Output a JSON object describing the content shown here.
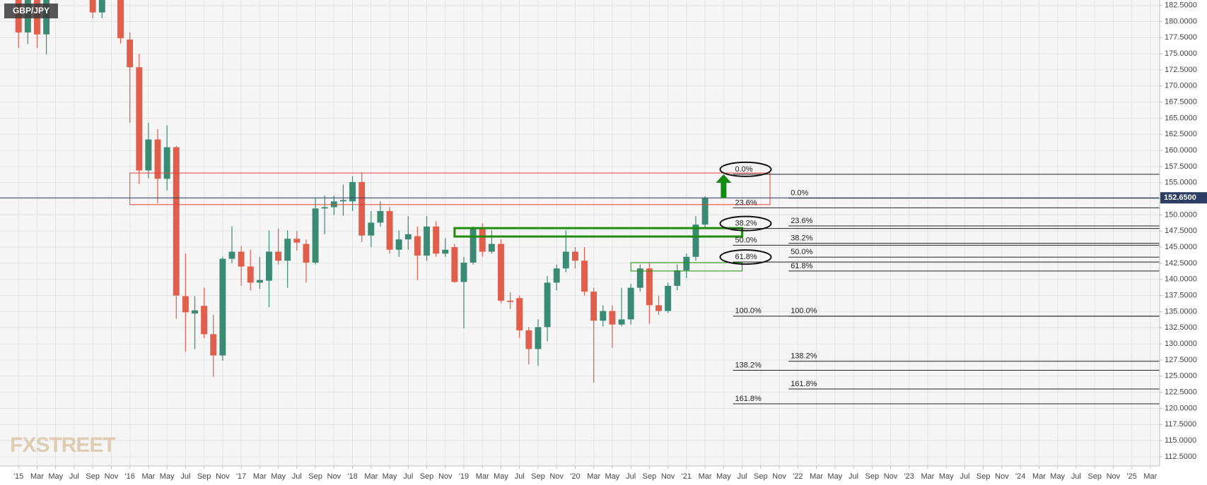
{
  "chart_data": {
    "type": "candlestick",
    "title": "GBP/JPY",
    "watermark": "FXSTREET",
    "up_color": "#3b8b74",
    "down_color": "#df5f4c",
    "grid": true,
    "x": [
      "2015-01",
      "2015-02",
      "2015-03",
      "2015-04",
      "2015-09",
      "2015-10",
      "2015-12",
      "2016-01",
      "2016-02",
      "2016-03",
      "2016-04",
      "2016-05",
      "2016-06",
      "2016-07",
      "2016-08",
      "2016-09",
      "2016-10",
      "2016-11",
      "2016-12",
      "2017-01",
      "2017-02",
      "2017-03",
      "2017-04",
      "2017-05",
      "2017-06",
      "2017-07",
      "2017-08",
      "2017-09",
      "2017-10",
      "2017-11",
      "2017-12",
      "2018-01",
      "2018-02",
      "2018-03",
      "2018-04",
      "2018-05",
      "2018-06",
      "2018-07",
      "2018-08",
      "2018-09",
      "2018-10",
      "2018-11",
      "2018-12",
      "2019-01",
      "2019-02",
      "2019-03",
      "2019-04",
      "2019-05",
      "2019-06",
      "2019-07",
      "2019-08",
      "2019-09",
      "2019-10",
      "2019-11",
      "2019-12",
      "2020-01",
      "2020-02",
      "2020-03",
      "2020-04",
      "2020-05",
      "2020-06",
      "2020-07",
      "2020-08",
      "2020-09",
      "2020-10",
      "2020-11",
      "2020-12",
      "2021-01",
      "2021-02",
      "2021-03"
    ],
    "open": [
      186.0,
      178.3,
      183.7,
      178.0,
      186.0,
      181.4,
      185.5,
      177.2,
      172.9,
      156.9,
      161.7,
      155.6,
      160.5,
      137.4,
      134.7,
      135.9,
      131.5,
      128.2,
      143.2,
      144.3,
      142.0,
      139.5,
      139.8,
      144.3,
      142.9,
      146.3,
      145.5,
      142.6,
      151.0,
      151.2,
      152.1,
      152.1,
      155.1,
      146.8,
      148.8,
      150.6,
      144.6,
      146.2,
      146.7,
      143.7,
      148.2,
      144.0,
      145.0,
      139.6,
      142.6,
      147.9,
      144.3,
      145.5,
      136.7,
      137.1,
      132.1,
      129.2,
      132.6,
      139.5,
      141.7,
      144.3,
      142.9,
      138.1,
      133.6,
      135.1,
      133.0,
      133.8,
      138.7,
      141.7,
      136.0,
      135.1,
      139.0,
      141.4,
      143.5,
      148.5
    ],
    "high": [
      186.5,
      185.3,
      184.4,
      184.5,
      188.0,
      186.0,
      186.5,
      178.3,
      175.0,
      164.3,
      163.3,
      163.9,
      160.7,
      144.0,
      137.4,
      138.7,
      134.5,
      143.5,
      148.2,
      145.2,
      144.6,
      143.5,
      147.6,
      147.9,
      147.6,
      147.5,
      146.2,
      152.6,
      153.0,
      153.0,
      154.7,
      156.0,
      156.6,
      150.6,
      152.1,
      151.2,
      147.6,
      149.8,
      148.2,
      149.8,
      149.0,
      146.4,
      145.5,
      143.5,
      148.2,
      148.7,
      147.6,
      146.2,
      138.0,
      137.5,
      132.6,
      133.8,
      140.5,
      142.3,
      147.6,
      145.0,
      145.0,
      138.7,
      136.0,
      136.0,
      138.7,
      139.3,
      142.3,
      142.6,
      137.5,
      139.5,
      142.3,
      144.0,
      149.8,
      152.9
    ],
    "low": [
      175.9,
      176.5,
      175.9,
      174.9,
      180.5,
      180.5,
      176.6,
      164.3,
      154.8,
      155.7,
      151.8,
      153.8,
      133.9,
      128.8,
      129.2,
      130.9,
      124.9,
      127.4,
      142.5,
      139.0,
      138.3,
      138.5,
      135.7,
      142.3,
      138.7,
      144.5,
      139.5,
      142.3,
      147.0,
      150.0,
      149.9,
      150.6,
      145.8,
      145.0,
      148.2,
      144.0,
      143.5,
      144.6,
      139.9,
      142.9,
      143.5,
      143.5,
      139.5,
      132.4,
      142.3,
      143.5,
      144.0,
      136.3,
      135.4,
      130.9,
      126.8,
      126.6,
      130.4,
      138.3,
      141.1,
      141.7,
      137.5,
      124.0,
      132.7,
      129.4,
      132.7,
      133.0,
      138.1,
      133.1,
      134.5,
      134.8,
      138.3,
      140.2,
      142.9,
      147.9
    ],
    "close": [
      178.3,
      183.7,
      178.0,
      183.4,
      181.4,
      185.7,
      177.4,
      172.9,
      156.9,
      161.7,
      155.6,
      160.5,
      137.5,
      134.9,
      135.2,
      131.5,
      128.2,
      143.2,
      144.3,
      142.0,
      139.5,
      139.9,
      144.3,
      142.9,
      146.3,
      145.7,
      142.6,
      151.0,
      151.2,
      152.1,
      152.3,
      155.1,
      146.8,
      148.8,
      150.6,
      144.6,
      146.2,
      147.0,
      143.7,
      148.2,
      144.0,
      144.6,
      139.6,
      142.6,
      147.9,
      144.3,
      145.5,
      136.7,
      136.5,
      132.1,
      129.2,
      132.6,
      139.5,
      141.7,
      144.3,
      142.9,
      138.1,
      133.6,
      135.1,
      133.0,
      133.8,
      138.7,
      141.7,
      136.0,
      135.1,
      139.0,
      141.4,
      143.5,
      148.5,
      152.6
    ],
    "xlim": [
      "2014-11",
      "2025-04"
    ],
    "ylim": [
      111.07,
      183.33
    ],
    "yticks": [
      {
        "value": 112.5,
        "label": "112.5000"
      },
      {
        "value": 115,
        "label": "115.0000"
      },
      {
        "value": 117.5,
        "label": "117.5000"
      },
      {
        "value": 120,
        "label": "120.0000"
      },
      {
        "value": 122.5,
        "label": "122.5000"
      },
      {
        "value": 125,
        "label": "125.0000"
      },
      {
        "value": 127.5,
        "label": "127.5000"
      },
      {
        "value": 130,
        "label": "130.0000"
      },
      {
        "value": 132.5,
        "label": "132.5000"
      },
      {
        "value": 135,
        "label": "135.0000"
      },
      {
        "value": 137.5,
        "label": "137.5000"
      },
      {
        "value": 140,
        "label": "140.0000"
      },
      {
        "value": 142.5,
        "label": "142.5000"
      },
      {
        "value": 145,
        "label": "145.0000"
      },
      {
        "value": 147.5,
        "label": "147.5000"
      },
      {
        "value": 150,
        "label": "150.0000"
      },
      {
        "value": 152.5,
        "label": "152.5000"
      },
      {
        "value": 155,
        "label": "155.0000"
      },
      {
        "value": 157.5,
        "label": "157.5000"
      },
      {
        "value": 160,
        "label": "160.0000"
      },
      {
        "value": 162.5,
        "label": "162.5000"
      },
      {
        "value": 165,
        "label": "165.0000"
      },
      {
        "value": 167.5,
        "label": "167.5000"
      },
      {
        "value": 170,
        "label": "170.0000"
      },
      {
        "value": 172.5,
        "label": "172.5000"
      },
      {
        "value": 175,
        "label": "175.0000"
      },
      {
        "value": 177.5,
        "label": "177.5000"
      },
      {
        "value": 180,
        "label": "180.0000"
      },
      {
        "value": 182.5,
        "label": "182.5000"
      }
    ],
    "xticks": [
      {
        "value": "2015-01",
        "label": "'15"
      },
      {
        "value": "2015-03",
        "label": "Mar"
      },
      {
        "value": "2015-05",
        "label": "May"
      },
      {
        "value": "2015-07",
        "label": "Jul"
      },
      {
        "value": "2015-09",
        "label": "Sep"
      },
      {
        "value": "2015-11",
        "label": "Nov"
      },
      {
        "value": "2016-01",
        "label": "'16"
      },
      {
        "value": "2016-03",
        "label": "Mar"
      },
      {
        "value": "2016-05",
        "label": "May"
      },
      {
        "value": "2016-07",
        "label": "Jul"
      },
      {
        "value": "2016-09",
        "label": "Sep"
      },
      {
        "value": "2016-11",
        "label": "Nov"
      },
      {
        "value": "2017-01",
        "label": "'17"
      },
      {
        "value": "2017-03",
        "label": "Mar"
      },
      {
        "value": "2017-05",
        "label": "May"
      },
      {
        "value": "2017-07",
        "label": "Jul"
      },
      {
        "value": "2017-09",
        "label": "Sep"
      },
      {
        "value": "2017-11",
        "label": "Nov"
      },
      {
        "value": "2018-01",
        "label": "'18"
      },
      {
        "value": "2018-03",
        "label": "Mar"
      },
      {
        "value": "2018-05",
        "label": "May"
      },
      {
        "value": "2018-07",
        "label": "Jul"
      },
      {
        "value": "2018-09",
        "label": "Sep"
      },
      {
        "value": "2018-11",
        "label": "Nov"
      },
      {
        "value": "2019-01",
        "label": "'19"
      },
      {
        "value": "2019-03",
        "label": "Mar"
      },
      {
        "value": "2019-05",
        "label": "May"
      },
      {
        "value": "2019-07",
        "label": "Jul"
      },
      {
        "value": "2019-09",
        "label": "Sep"
      },
      {
        "value": "2019-11",
        "label": "Nov"
      },
      {
        "value": "2020-01",
        "label": "'20"
      },
      {
        "value": "2020-03",
        "label": "Mar"
      },
      {
        "value": "2020-05",
        "label": "May"
      },
      {
        "value": "2020-07",
        "label": "Jul"
      },
      {
        "value": "2020-09",
        "label": "Sep"
      },
      {
        "value": "2020-11",
        "label": "Nov"
      },
      {
        "value": "2021-01",
        "label": "'21"
      },
      {
        "value": "2021-03",
        "label": "Mar"
      },
      {
        "value": "2021-05",
        "label": "May"
      },
      {
        "value": "2021-07",
        "label": "Jul"
      },
      {
        "value": "2021-09",
        "label": "Sep"
      },
      {
        "value": "2021-11",
        "label": "Nov"
      },
      {
        "value": "2022-01",
        "label": "'22"
      },
      {
        "value": "2022-03",
        "label": "Mar"
      },
      {
        "value": "2022-05",
        "label": "May"
      },
      {
        "value": "2022-07",
        "label": "Jul"
      },
      {
        "value": "2022-09",
        "label": "Sep"
      },
      {
        "value": "2022-11",
        "label": "Nov"
      },
      {
        "value": "2023-01",
        "label": "'23"
      },
      {
        "value": "2023-03",
        "label": "Mar"
      },
      {
        "value": "2023-05",
        "label": "May"
      },
      {
        "value": "2023-07",
        "label": "Jul"
      },
      {
        "value": "2023-09",
        "label": "Sep"
      },
      {
        "value": "2023-11",
        "label": "Nov"
      },
      {
        "value": "2024-01",
        "label": "'24"
      },
      {
        "value": "2024-03",
        "label": "Mar"
      },
      {
        "value": "2024-05",
        "label": "May"
      },
      {
        "value": "2024-07",
        "label": "Jul"
      },
      {
        "value": "2024-09",
        "label": "Sep"
      },
      {
        "value": "2024-11",
        "label": "Nov"
      },
      {
        "value": "2025-01",
        "label": "'25"
      },
      {
        "value": "2025-03",
        "label": "Mar"
      }
    ],
    "last_price": {
      "value": 152.65,
      "label": "152.6500"
    },
    "zones": [
      {
        "color": "#e8413c",
        "line_width": 1,
        "x": [
          "2016-01",
          "2021-10"
        ],
        "y": [
          151.6,
          156.5
        ]
      },
      {
        "color": "#1f8c0c",
        "line_width": 3,
        "x": [
          "2018-12",
          "2021-07"
        ],
        "y": [
          146.65,
          147.95
        ]
      },
      {
        "color": "#1f8c0c",
        "line_width": 1,
        "x": [
          "2020-07",
          "2021-07"
        ],
        "y": [
          141.3,
          142.6
        ]
      }
    ],
    "fib_sets": [
      {
        "start": "2021-06",
        "levels": [
          {
            "label": "0.0%",
            "value": 156.3,
            "circled": true
          },
          {
            "label": "23.6%",
            "value": 151.1
          },
          {
            "label": "38.2%",
            "value": 147.9,
            "circled": true
          },
          {
            "label": "50.0%",
            "value": 145.3
          },
          {
            "label": "61.8%",
            "value": 142.7,
            "circled": true
          },
          {
            "label": "100.0%",
            "value": 134.3
          },
          {
            "label": "138.2%",
            "value": 125.9
          },
          {
            "label": "161.8%",
            "value": 120.7
          }
        ]
      },
      {
        "start": "2021-12",
        "levels": [
          {
            "label": "0.0%",
            "value": 152.6
          },
          {
            "label": "23.6%",
            "value": 148.3
          },
          {
            "label": "38.2%",
            "value": 145.6
          },
          {
            "label": "50.0%",
            "value": 143.45
          },
          {
            "label": "61.8%",
            "value": 141.3
          },
          {
            "label": "100.0%",
            "value": 134.3
          },
          {
            "label": "138.2%",
            "value": 127.3
          },
          {
            "label": "161.8%",
            "value": 123.0
          }
        ]
      }
    ],
    "arrow_color": "#138a12"
  }
}
